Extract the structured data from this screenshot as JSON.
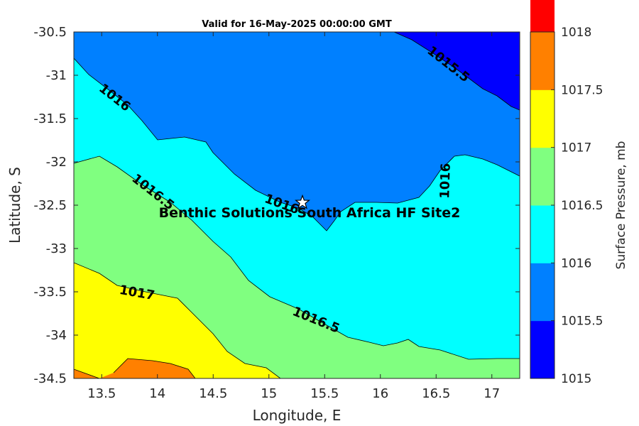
{
  "title": "Valid for 16-May-2025 00:00:00 GMT",
  "xlabel": "Longitude, E",
  "ylabel": "Latitude, S",
  "colorbar_label": "Surface Pressure, mb",
  "site_label": "Benthic Solutions South Africa HF Site2",
  "site_marker": "star-icon",
  "x_ticks": [
    "13.5",
    "14",
    "14.5",
    "15",
    "15.5",
    "16",
    "16.5",
    "17"
  ],
  "y_ticks": [
    "-30.5",
    "-31",
    "-31.5",
    "-32",
    "-32.5",
    "-33",
    "-33.5",
    "-34",
    "-34.5"
  ],
  "colorbar_ticks": [
    "1018",
    "1017.5",
    "1017",
    "1016.5",
    "1016",
    "1015.5",
    "1015"
  ],
  "colorbar_colors": [
    "#0000ff",
    "#0080ff",
    "#00ffff",
    "#80ff80",
    "#ffff00",
    "#ff8000",
    "#ff0000"
  ],
  "contour_labels": [
    "1015.5",
    "1016",
    "1016",
    "1016",
    "1016.5",
    "1016.5",
    "1017"
  ],
  "chart_data": {
    "type": "heatmap",
    "subtype": "filled-contour-map",
    "title": "Valid for 16-May-2025 00:00:00 GMT",
    "xlabel": "Longitude, E",
    "ylabel": "Latitude, S",
    "xlim": [
      13.25,
      17.25
    ],
    "ylim": [
      -34.5,
      -30.5
    ],
    "levels": [
      1015,
      1015.5,
      1016,
      1016.5,
      1017,
      1017.5,
      1018
    ],
    "colorbar_label": "Surface Pressure, mb",
    "site": {
      "name": "Benthic Solutions South Africa HF Site2",
      "lon": 15.32,
      "lat": -32.47
    }
  }
}
